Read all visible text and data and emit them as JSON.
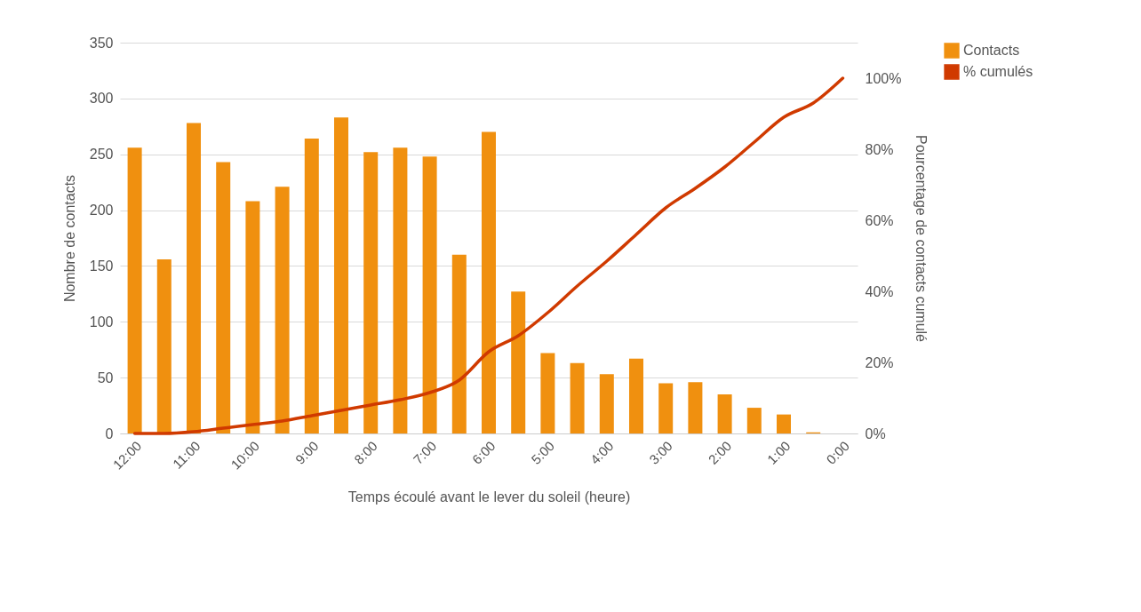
{
  "chart_data": {
    "type": "bar",
    "xlabel": "Temps écoulé avant le lever du soleil (heure)",
    "ylabel": "Nombre de contacts",
    "y2label": "Pourcentage de contacts cumulé",
    "categories": [
      "12:00",
      null,
      "11:00",
      null,
      "10:00",
      null,
      "9:00",
      null,
      "8:00",
      null,
      "7:00",
      null,
      "6:00",
      null,
      "5:00",
      null,
      "4:00",
      null,
      "3:00",
      null,
      "2:00",
      null,
      "1:00",
      null,
      "0:00"
    ],
    "series": [
      {
        "name": "Contacts",
        "color": "#f0900f",
        "values": [
          256,
          156,
          278,
          243,
          208,
          221,
          264,
          283,
          252,
          256,
          248,
          160,
          270,
          127,
          72,
          63,
          53,
          67,
          45,
          46,
          35,
          23,
          17,
          1,
          0
        ]
      },
      {
        "name": "% cumulés",
        "type": "line",
        "axis": "y2",
        "color": "#d03a00",
        "values": [
          0,
          0,
          0.5,
          1.5,
          2.5,
          3.5,
          5,
          6.5,
          8,
          9.5,
          11.5,
          15,
          23,
          27.5,
          34,
          41.5,
          48.5,
          56,
          63.5,
          69,
          75,
          82,
          89,
          93,
          100
        ]
      }
    ],
    "ylim": [
      0,
      350
    ],
    "yticks": [
      0,
      50,
      100,
      150,
      200,
      250,
      300,
      350
    ],
    "y2lim": [
      0,
      110
    ],
    "y2ticks": [
      {
        "value": 0,
        "label": "0%"
      },
      {
        "value": 20,
        "label": "20%"
      },
      {
        "value": 40,
        "label": "40%"
      },
      {
        "value": 60,
        "label": "60%"
      },
      {
        "value": 80,
        "label": "80%"
      },
      {
        "value": 100,
        "label": "100%"
      }
    ],
    "grid": "y",
    "legend": "right",
    "marker": "none",
    "line_style": "solid"
  }
}
